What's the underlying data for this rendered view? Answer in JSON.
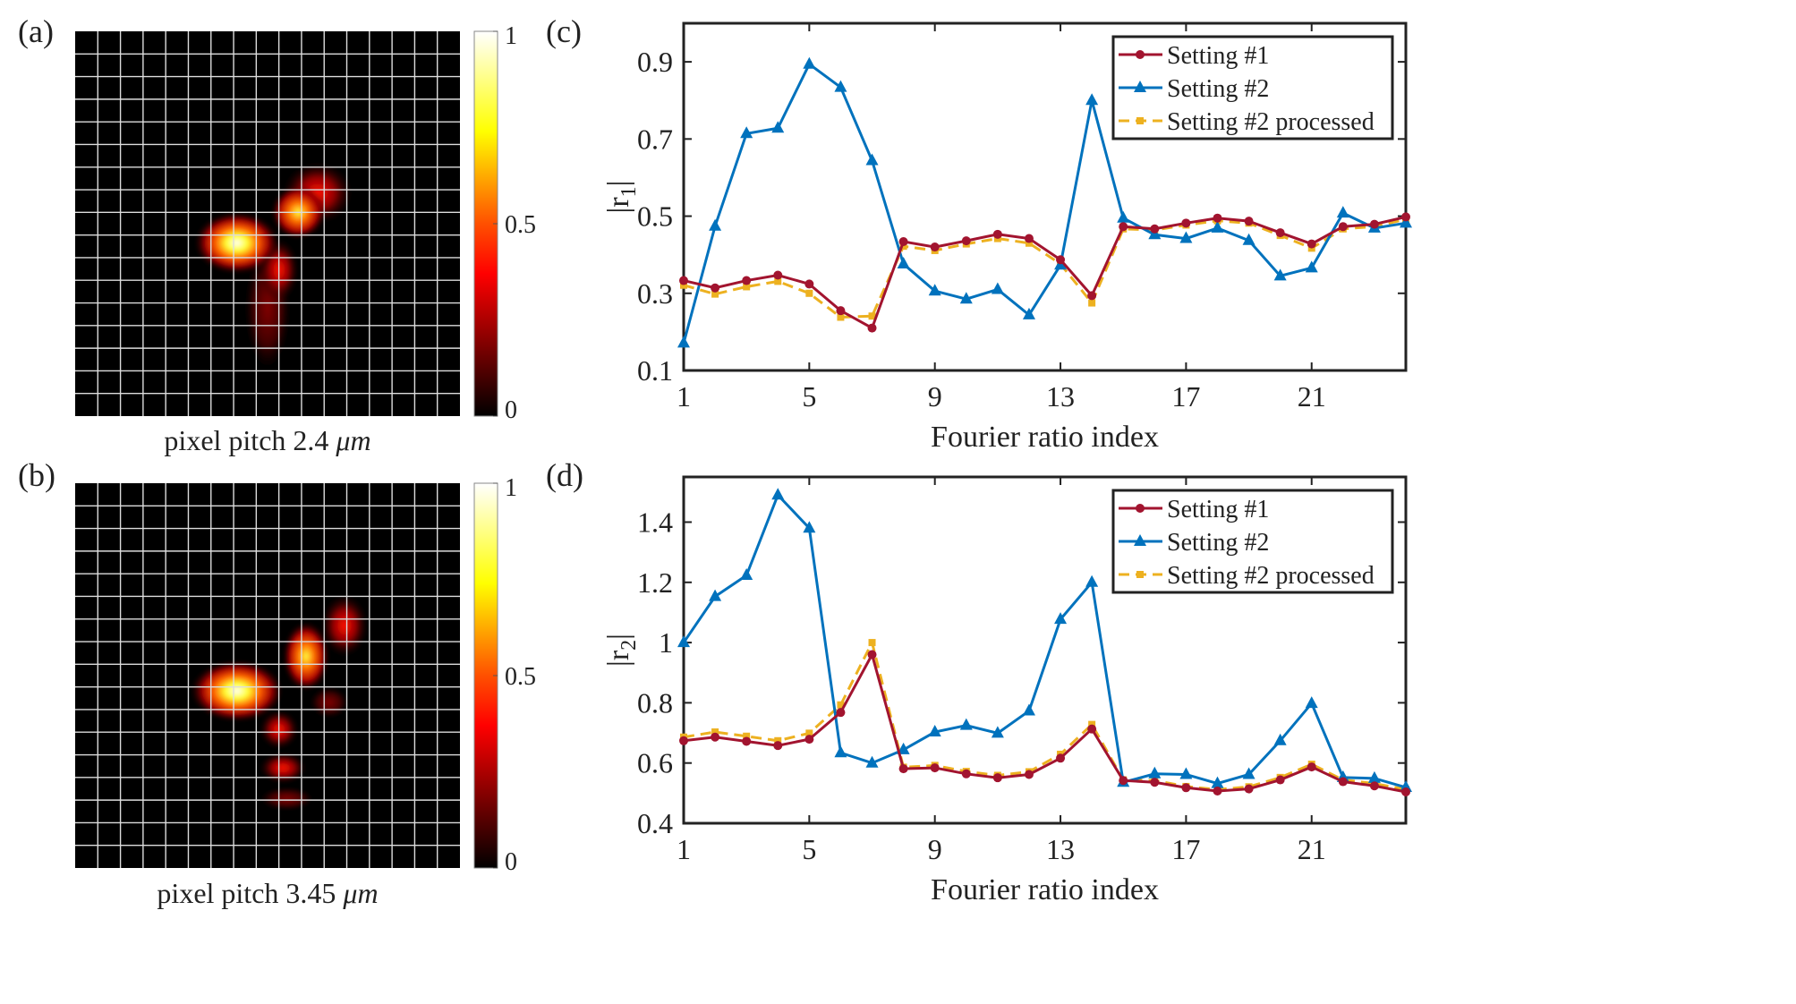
{
  "panels": {
    "a": {
      "label": "(a)",
      "caption_text": "pixel pitch 2.4",
      "caption_unit": "μm"
    },
    "b": {
      "label": "(b)",
      "caption_text": "pixel pitch 3.45",
      "caption_unit": "μm"
    },
    "c": {
      "label": "(c)"
    },
    "d": {
      "label": "(d)"
    }
  },
  "colorbar": {
    "ticks": [
      "1",
      "0.5",
      "0"
    ],
    "colormap": "hot",
    "range": [
      0,
      1
    ]
  },
  "chart_data": [
    {
      "type": "line",
      "panel": "c",
      "xlabel": "Fourier ratio index",
      "ylabel": "|r1|",
      "ylabel_main": "|r",
      "ylabel_sub": "1",
      "xlim": [
        1,
        24
      ],
      "ylim": [
        0.1,
        1.0
      ],
      "xticks": [
        1,
        5,
        9,
        13,
        17,
        21
      ],
      "yticks": [
        0.1,
        0.3,
        0.5,
        0.7,
        0.9
      ],
      "xtick_labels": [
        "1",
        "5",
        "9",
        "13",
        "17",
        "21"
      ],
      "ytick_labels": [
        "0.1",
        "0.3",
        "0.5",
        "0.7",
        "0.9"
      ],
      "legend": "top-right",
      "grid": false,
      "x": [
        1,
        2,
        3,
        4,
        5,
        6,
        7,
        8,
        9,
        10,
        11,
        12,
        13,
        14,
        15,
        16,
        17,
        18,
        19,
        20,
        21,
        22,
        23,
        24
      ],
      "series": [
        {
          "name": "Setting #1",
          "color": "#a2142f",
          "marker": "circle",
          "dash": "solid",
          "values": [
            0.333,
            0.314,
            0.333,
            0.347,
            0.324,
            0.255,
            0.21,
            0.434,
            0.42,
            0.436,
            0.453,
            0.442,
            0.387,
            0.294,
            0.473,
            0.467,
            0.482,
            0.495,
            0.487,
            0.457,
            0.428,
            0.473,
            0.479,
            0.498
          ]
        },
        {
          "name": "Setting #2",
          "color": "#0072bd",
          "marker": "triangle",
          "dash": "solid",
          "values": [
            0.171,
            0.474,
            0.714,
            0.728,
            0.894,
            0.834,
            0.644,
            0.376,
            0.306,
            0.285,
            0.31,
            0.244,
            0.373,
            0.8,
            0.495,
            0.452,
            0.442,
            0.469,
            0.437,
            0.345,
            0.366,
            0.508,
            0.469,
            0.482
          ]
        },
        {
          "name": "Setting #2 processed",
          "color": "#edb120",
          "marker": "square",
          "dash": "dashed",
          "values": [
            0.321,
            0.298,
            0.317,
            0.331,
            0.3,
            0.238,
            0.241,
            0.422,
            0.411,
            0.428,
            0.442,
            0.43,
            0.376,
            0.275,
            0.467,
            0.464,
            0.477,
            0.488,
            0.482,
            0.45,
            0.417,
            0.467,
            0.473,
            0.492
          ]
        }
      ]
    },
    {
      "type": "line",
      "panel": "d",
      "xlabel": "Fourier ratio index",
      "ylabel": "|r2|",
      "ylabel_main": "|r",
      "ylabel_sub": "2",
      "xlim": [
        1,
        24
      ],
      "ylim": [
        0.4,
        1.55
      ],
      "xticks": [
        1,
        5,
        9,
        13,
        17,
        21
      ],
      "yticks": [
        0.4,
        0.6,
        0.8,
        1.0,
        1.2,
        1.4
      ],
      "xtick_labels": [
        "1",
        "5",
        "9",
        "13",
        "17",
        "21"
      ],
      "ytick_labels": [
        "0.4",
        "0.6",
        "0.8",
        "1",
        "1.2",
        "1.4"
      ],
      "legend": "top-right",
      "grid": false,
      "x": [
        1,
        2,
        3,
        4,
        5,
        6,
        7,
        8,
        9,
        10,
        11,
        12,
        13,
        14,
        15,
        16,
        17,
        18,
        19,
        20,
        21,
        22,
        23,
        24
      ],
      "series": [
        {
          "name": "Setting #1",
          "color": "#a2142f",
          "marker": "circle",
          "dash": "solid",
          "values": [
            0.674,
            0.686,
            0.672,
            0.658,
            0.679,
            0.768,
            0.96,
            0.581,
            0.584,
            0.564,
            0.551,
            0.562,
            0.616,
            0.713,
            0.542,
            0.536,
            0.518,
            0.507,
            0.514,
            0.544,
            0.587,
            0.538,
            0.524,
            0.504
          ]
        },
        {
          "name": "Setting #2",
          "color": "#0072bd",
          "marker": "triangle",
          "dash": "solid",
          "values": [
            1.0,
            1.153,
            1.223,
            1.49,
            1.38,
            0.634,
            0.6,
            0.644,
            0.703,
            0.725,
            0.699,
            0.773,
            1.077,
            1.2,
            0.536,
            0.564,
            0.562,
            0.532,
            0.562,
            0.674,
            0.798,
            0.552,
            0.549,
            0.519
          ]
        },
        {
          "name": "Setting #2 processed",
          "color": "#edb120",
          "marker": "square",
          "dash": "dashed",
          "values": [
            0.686,
            0.703,
            0.689,
            0.674,
            0.699,
            0.793,
            1.0,
            0.586,
            0.592,
            0.572,
            0.559,
            0.571,
            0.629,
            0.728,
            0.544,
            0.542,
            0.522,
            0.512,
            0.521,
            0.552,
            0.596,
            0.544,
            0.532,
            0.512
          ]
        }
      ]
    }
  ]
}
